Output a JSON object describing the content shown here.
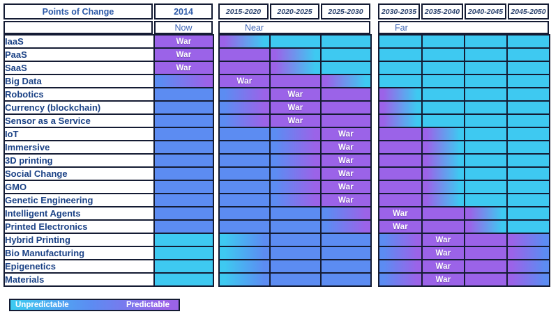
{
  "palette": {
    "cyan": "#3EC9F1",
    "blue": "#5C8CF2",
    "purple": "#9B63E8",
    "border": "#141B33",
    "row_label_text": "#1B4286",
    "header_text": "#2D5AA8",
    "phase_text": "#3D64B4",
    "period_header_text": "#2E4570",
    "war_text": "#FFFFFF"
  },
  "war_label": "War",
  "left_table": {
    "title": "Points of Change",
    "year": "2014",
    "phase": "Now"
  },
  "near_table": {
    "phase": "Near",
    "columns": [
      "2015-2020",
      "2020-2025",
      "2025-2030"
    ]
  },
  "far_table": {
    "phase": "Far",
    "columns": [
      "2030-2035",
      "2035-2040",
      "2040-2045",
      "2045-2050"
    ]
  },
  "legend": {
    "left_label": "Unpredictable",
    "right_label": "Predictable"
  },
  "cell_color_codes": {
    "C": "solid cyan = unpredictable",
    "B": "solid blue = intermediate",
    "P": "solid purple = predictable",
    "two-letter codes": "left-to-right gradient between the two colors",
    "*": "cell carries the War marker"
  },
  "chart_data": {
    "type": "heatmap",
    "title": "Points of Change",
    "columns": [
      "2014",
      "2015-2020",
      "2020-2025",
      "2025-2030",
      "2030-2035",
      "2035-2040",
      "2040-2045",
      "2045-2050"
    ],
    "column_groups": [
      {
        "label": "Now",
        "columns": [
          "2014"
        ]
      },
      {
        "label": "Near",
        "columns": [
          "2015-2020",
          "2020-2025",
          "2025-2030"
        ]
      },
      {
        "label": "Far",
        "columns": [
          "2030-2035",
          "2035-2040",
          "2040-2045",
          "2045-2050"
        ]
      }
    ],
    "legend": {
      "scale_min_label": "Unpredictable",
      "scale_max_label": "Predictable",
      "scale_colors": [
        "#3EC9F1",
        "#9B63E8"
      ]
    },
    "rows": [
      {
        "label": "IaaS",
        "war": "2014",
        "cells": [
          "P*",
          "PC",
          "C",
          "C",
          "C",
          "C",
          "C",
          "C"
        ]
      },
      {
        "label": "PaaS",
        "war": "2014",
        "cells": [
          "P*",
          "P",
          "PC",
          "C",
          "C",
          "C",
          "C",
          "C"
        ]
      },
      {
        "label": "SaaS",
        "war": "2014",
        "cells": [
          "P*",
          "P",
          "PC",
          "C",
          "C",
          "C",
          "C",
          "C"
        ]
      },
      {
        "label": "Big Data",
        "war": "2015-2020",
        "cells": [
          "BP",
          "P*",
          "P",
          "PC",
          "C",
          "C",
          "C",
          "C"
        ]
      },
      {
        "label": "Robotics",
        "war": "2020-2025",
        "cells": [
          "B",
          "BP",
          "P*",
          "P",
          "PC",
          "C",
          "C",
          "C"
        ]
      },
      {
        "label": "Currency (blockchain)",
        "war": "2020-2025",
        "cells": [
          "B",
          "BP",
          "P*",
          "P",
          "PC",
          "C",
          "C",
          "C"
        ]
      },
      {
        "label": "Sensor as a Service",
        "war": "2020-2025",
        "cells": [
          "B",
          "BP",
          "P*",
          "P",
          "PC",
          "C",
          "C",
          "C"
        ]
      },
      {
        "label": "IoT",
        "war": "2025-2030",
        "cells": [
          "B",
          "B",
          "BP",
          "P*",
          "P",
          "PC",
          "C",
          "C"
        ]
      },
      {
        "label": "Immersive",
        "war": "2025-2030",
        "cells": [
          "B",
          "B",
          "BP",
          "P*",
          "P",
          "PC",
          "C",
          "C"
        ]
      },
      {
        "label": "3D printing",
        "war": "2025-2030",
        "cells": [
          "B",
          "B",
          "BP",
          "P*",
          "P",
          "PC",
          "C",
          "C"
        ]
      },
      {
        "label": "Social Change",
        "war": "2025-2030",
        "cells": [
          "B",
          "B",
          "BP",
          "P*",
          "P",
          "PC",
          "C",
          "C"
        ]
      },
      {
        "label": "GMO",
        "war": "2025-2030",
        "cells": [
          "B",
          "B",
          "BP",
          "P*",
          "P",
          "PC",
          "C",
          "C"
        ]
      },
      {
        "label": "Genetic Engineering",
        "war": "2025-2030",
        "cells": [
          "B",
          "B",
          "BP",
          "P*",
          "P",
          "PC",
          "C",
          "C"
        ]
      },
      {
        "label": "Intelligent Agents",
        "war": "2030-2035",
        "cells": [
          "B",
          "B",
          "B",
          "BP",
          "P*",
          "P",
          "PC",
          "C"
        ]
      },
      {
        "label": "Printed Electronics",
        "war": "2030-2035",
        "cells": [
          "B",
          "B",
          "B",
          "BP",
          "P*",
          "P",
          "PC",
          "C"
        ]
      },
      {
        "label": "Hybrid Printing",
        "war": "2035-2040",
        "cells": [
          "C",
          "CB",
          "B",
          "B",
          "BP",
          "P*",
          "P",
          "PB"
        ]
      },
      {
        "label": "Bio Manufacturing",
        "war": "2035-2040",
        "cells": [
          "C",
          "CB",
          "B",
          "B",
          "BP",
          "P*",
          "P",
          "PB"
        ]
      },
      {
        "label": "Epigenetics",
        "war": "2035-2040",
        "cells": [
          "C",
          "CB",
          "B",
          "B",
          "BP",
          "P*",
          "P",
          "PB"
        ]
      },
      {
        "label": "Materials",
        "war": "2035-2040",
        "cells": [
          "C",
          "CB",
          "B",
          "B",
          "BP",
          "P*",
          "P",
          "PB"
        ]
      }
    ]
  }
}
